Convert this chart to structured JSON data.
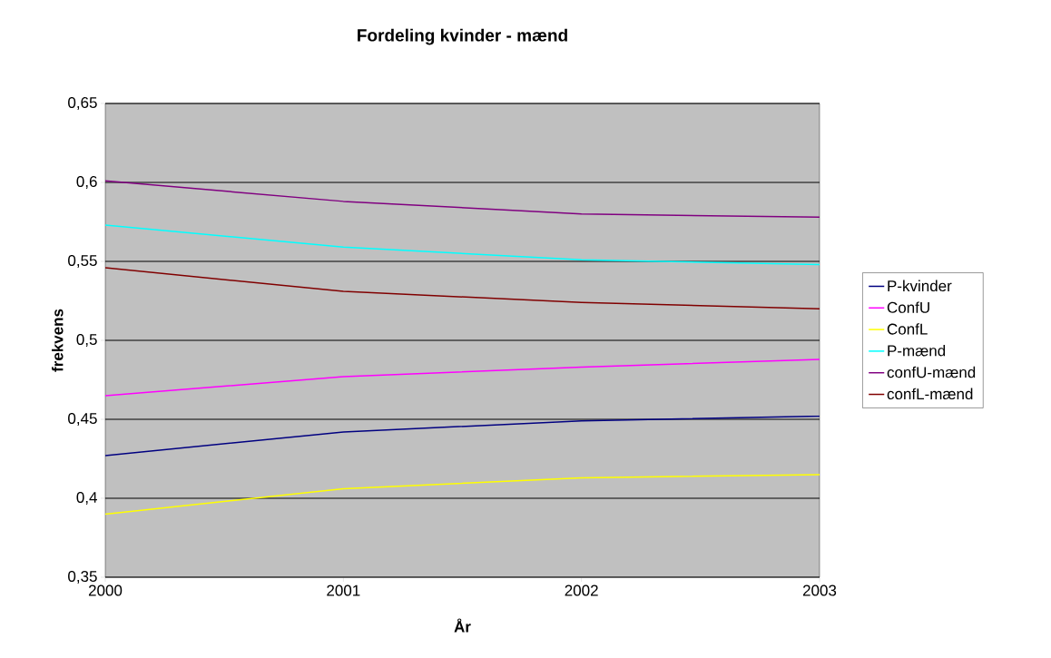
{
  "chart_data": {
    "type": "line",
    "title": "Fordeling kvinder - mænd",
    "xlabel": "År",
    "ylabel": "frekvens",
    "x": [
      2000,
      2001,
      2002,
      2003
    ],
    "series": [
      {
        "name": "P-kvinder",
        "color": "#000080",
        "values": [
          0.427,
          0.442,
          0.449,
          0.452
        ]
      },
      {
        "name": "ConfU",
        "color": "#ff00ff",
        "values": [
          0.465,
          0.477,
          0.483,
          0.488
        ]
      },
      {
        "name": "ConfL",
        "color": "#ffff00",
        "values": [
          0.39,
          0.406,
          0.413,
          0.415
        ]
      },
      {
        "name": "P-mænd",
        "color": "#00ffff",
        "values": [
          0.573,
          0.559,
          0.551,
          0.548
        ]
      },
      {
        "name": "confU-mænd",
        "color": "#800080",
        "values": [
          0.601,
          0.588,
          0.58,
          0.578
        ]
      },
      {
        "name": "confL-mænd",
        "color": "#800000",
        "values": [
          0.546,
          0.531,
          0.524,
          0.52
        ]
      }
    ],
    "xlim": [
      2000,
      2003
    ],
    "xticks": [
      2000,
      2001,
      2002,
      2003
    ],
    "ylim": [
      0.35,
      0.65
    ],
    "yticks": [
      {
        "value": 0.35,
        "label": "0,35"
      },
      {
        "value": 0.4,
        "label": "0,4"
      },
      {
        "value": 0.45,
        "label": "0,45"
      },
      {
        "value": 0.5,
        "label": "0,5"
      },
      {
        "value": 0.55,
        "label": "0,55"
      },
      {
        "value": 0.6,
        "label": "0,6"
      },
      {
        "value": 0.65,
        "label": "0,65"
      }
    ],
    "grid": "y",
    "legend": "right"
  }
}
